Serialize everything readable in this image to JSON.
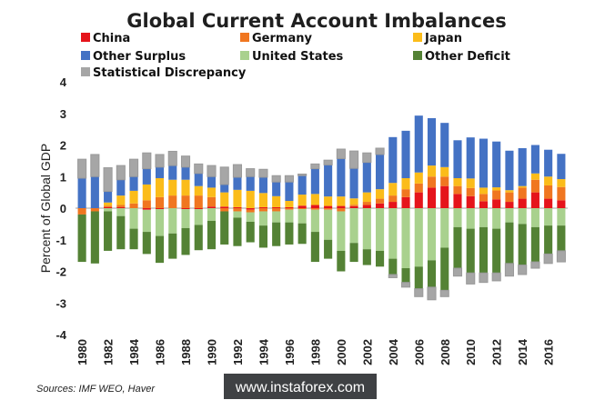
{
  "chart_data": {
    "type": "stacked-bar",
    "title": "Global Current Account Imbalances",
    "ylabel": "Percent of Global GDP",
    "xlabel": "",
    "ylim": [
      -4,
      4
    ],
    "yticks": [
      4,
      3,
      2,
      1,
      0,
      -1,
      -2,
      -3,
      -4
    ],
    "xtick_labels": [
      "1980",
      "1982",
      "1984",
      "1986",
      "1988",
      "1990",
      "1992",
      "1994",
      "1996",
      "1998",
      "2000",
      "2002",
      "2004",
      "2006",
      "2008",
      "2010",
      "2012",
      "2014",
      "2016"
    ],
    "grid": false,
    "legend_position": "top",
    "categories": [
      1980,
      1981,
      1982,
      1983,
      1984,
      1985,
      1986,
      1987,
      1988,
      1989,
      1990,
      1991,
      1992,
      1993,
      1994,
      1995,
      1996,
      1997,
      1998,
      1999,
      2000,
      2001,
      2002,
      2003,
      2004,
      2005,
      2006,
      2007,
      2008,
      2009,
      2010,
      2011,
      2012,
      2013,
      2014,
      2015,
      2016,
      2017
    ],
    "series": [
      {
        "name": "China",
        "color": "#e5141b",
        "values": [
          0,
          0,
          0.03,
          0.03,
          0,
          -0.05,
          -0.03,
          0,
          -0.03,
          -0.03,
          0.05,
          0.05,
          0.03,
          -0.05,
          0.03,
          0.03,
          0.03,
          0.08,
          0.1,
          0.07,
          0.07,
          0.06,
          0.1,
          0.15,
          0.2,
          0.35,
          0.5,
          0.65,
          0.7,
          0.45,
          0.38,
          0.22,
          0.28,
          0.2,
          0.3,
          0.5,
          0.3,
          0.25
        ]
      },
      {
        "name": "Germany",
        "color": "#f07620",
        "values": [
          -0.2,
          -0.1,
          0.05,
          0.07,
          0.15,
          0.25,
          0.35,
          0.4,
          0.4,
          0.4,
          0.3,
          -0.1,
          -0.1,
          -0.08,
          -0.1,
          -0.1,
          -0.05,
          -0.03,
          -0.05,
          -0.05,
          -0.1,
          0.05,
          0.1,
          0.15,
          0.2,
          0.25,
          0.28,
          0.35,
          0.3,
          0.25,
          0.26,
          0.23,
          0.28,
          0.3,
          0.35,
          0.4,
          0.42,
          0.42
        ]
      },
      {
        "name": "Japan",
        "color": "#fbbc1a",
        "values": [
          0,
          0,
          0.1,
          0.3,
          0.4,
          0.5,
          0.6,
          0.5,
          0.5,
          0.3,
          0.3,
          0.45,
          0.55,
          0.55,
          0.45,
          0.35,
          0.2,
          0.35,
          0.35,
          0.3,
          0.3,
          0.2,
          0.3,
          0.3,
          0.4,
          0.35,
          0.35,
          0.35,
          0.3,
          0.25,
          0.3,
          0.2,
          0.1,
          0.07,
          0.05,
          0.2,
          0.28,
          0.25
        ]
      },
      {
        "name": "Other Surplus",
        "color": "#4472c4",
        "values": [
          0.95,
          1.0,
          0.35,
          0.5,
          0.45,
          0.5,
          0.35,
          0.45,
          0.4,
          0.4,
          0.35,
          0.25,
          0.4,
          0.45,
          0.5,
          0.45,
          0.6,
          0.6,
          0.8,
          1.0,
          1.2,
          0.95,
          0.95,
          1.1,
          1.45,
          1.5,
          1.8,
          1.5,
          1.4,
          1.2,
          1.3,
          1.55,
          1.45,
          1.25,
          1.2,
          0.9,
          0.85,
          0.8
        ]
      },
      {
        "name": "United States",
        "color": "#a9d18e",
        "values": [
          0,
          0,
          -0.1,
          -0.25,
          -0.65,
          -0.7,
          -0.85,
          -0.8,
          -0.6,
          -0.5,
          -0.4,
          0,
          -0.2,
          -0.3,
          -0.45,
          -0.35,
          -0.4,
          -0.45,
          -0.7,
          -0.95,
          -1.25,
          -1.1,
          -1.3,
          -1.35,
          -1.6,
          -1.9,
          -1.85,
          -1.65,
          -1.25,
          -0.6,
          -0.65,
          -0.6,
          -0.65,
          -0.45,
          -0.5,
          -0.6,
          -0.55,
          -0.55
        ]
      },
      {
        "name": "Other Deficit",
        "color": "#548235",
        "values": [
          -1.5,
          -1.65,
          -1.25,
          -1.05,
          -0.65,
          -0.7,
          -0.85,
          -0.8,
          -0.85,
          -0.8,
          -0.9,
          -1.05,
          -0.9,
          -0.65,
          -0.7,
          -0.75,
          -0.7,
          -0.65,
          -0.95,
          -0.6,
          -0.65,
          -0.6,
          -0.5,
          -0.5,
          -0.5,
          -0.45,
          -0.7,
          -0.85,
          -1.35,
          -1.3,
          -1.4,
          -1.45,
          -1.4,
          -1.3,
          -1.3,
          -1.1,
          -0.9,
          -0.8
        ]
      },
      {
        "name": "Statistical Discrepancy",
        "color": "#a6a6a6",
        "values": [
          0.6,
          0.7,
          0.75,
          0.45,
          0.55,
          0.5,
          0.4,
          0.45,
          0.35,
          0.3,
          0.35,
          0.55,
          0.4,
          0.25,
          0.25,
          0.2,
          0.2,
          0.05,
          0.15,
          0.15,
          0.3,
          0.55,
          0.3,
          0.2,
          -0.1,
          -0.15,
          -0.25,
          -0.4,
          -0.2,
          -0.25,
          -0.35,
          -0.3,
          -0.25,
          -0.4,
          -0.3,
          -0.2,
          -0.3,
          -0.35
        ]
      }
    ]
  },
  "footer": {
    "source": "Sources: IMF WEO, Haver",
    "watermark": "www.instaforex.com"
  }
}
